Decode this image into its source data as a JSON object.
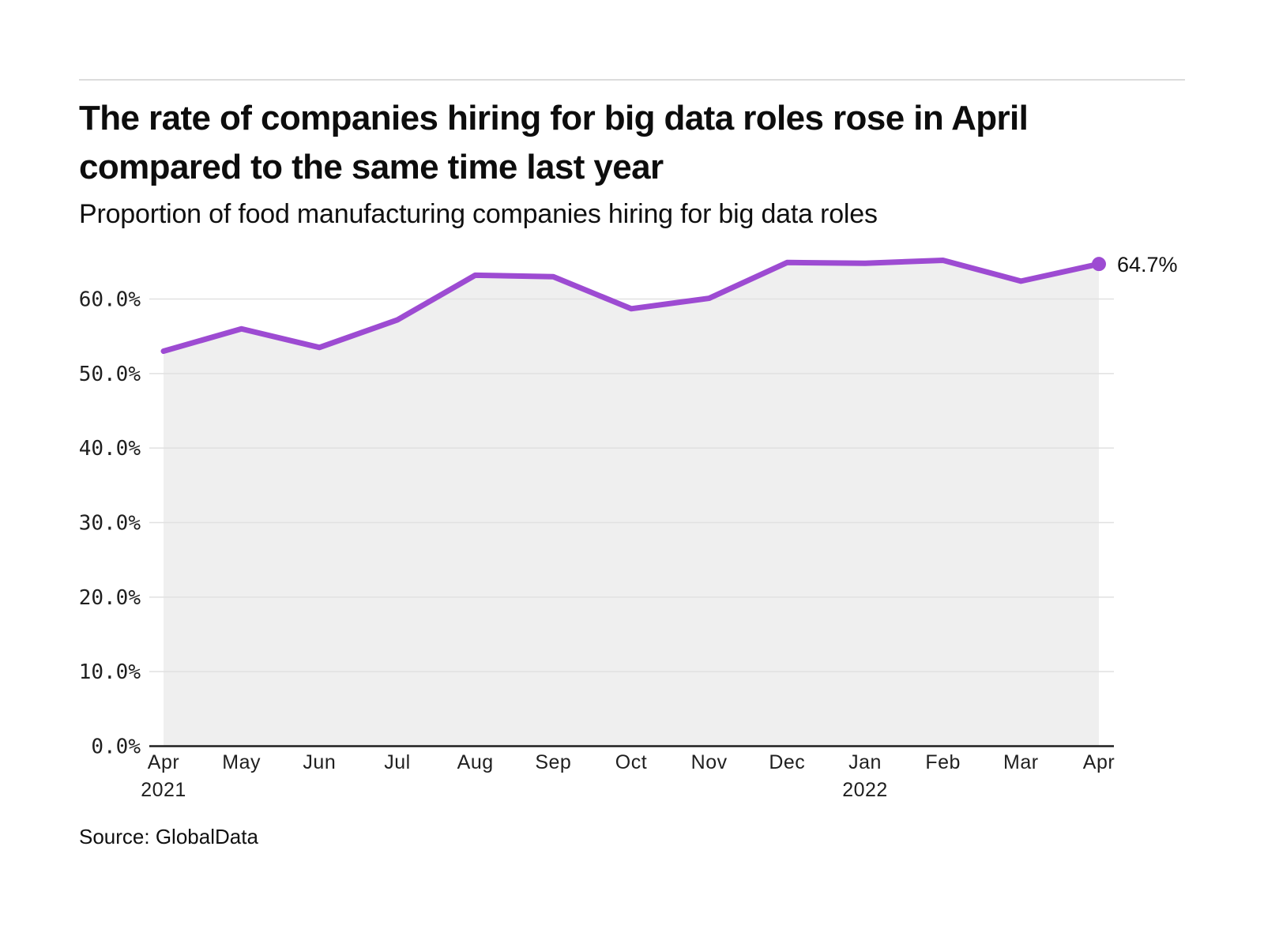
{
  "header": {
    "title": "The rate of companies hiring for big data roles rose in April compared to the same time last year",
    "subtitle": "Proportion of food manufacturing companies hiring for big data roles"
  },
  "footer": {
    "source": "Source: GlobalData"
  },
  "chart_data": {
    "type": "line",
    "area_fill": true,
    "title": "The rate of companies hiring for big data roles rose in April compared to the same time last year",
    "subtitle": "Proportion of food manufacturing companies hiring for big data roles",
    "source": "Source: GlobalData",
    "categories": [
      "Apr",
      "May",
      "Jun",
      "Jul",
      "Aug",
      "Sep",
      "Oct",
      "Nov",
      "Dec",
      "Jan",
      "Feb",
      "Mar",
      "Apr"
    ],
    "year_labels": [
      {
        "index": 0,
        "label": "2021"
      },
      {
        "index": 9,
        "label": "2022"
      }
    ],
    "series": [
      {
        "name": "Proportion of food manufacturing companies hiring for big data roles",
        "values": [
          53.0,
          56.0,
          53.5,
          57.2,
          63.2,
          63.0,
          58.7,
          60.1,
          64.9,
          64.8,
          65.2,
          62.4,
          64.7
        ]
      }
    ],
    "end_label": "64.7%",
    "ylim": [
      0,
      70
    ],
    "yticks": [
      {
        "value": 0,
        "label": "0.0%"
      },
      {
        "value": 10,
        "label": "10.0%"
      },
      {
        "value": 20,
        "label": "20.0%"
      },
      {
        "value": 30,
        "label": "30.0%"
      },
      {
        "value": 40,
        "label": "40.0%"
      },
      {
        "value": 50,
        "label": "50.0%"
      },
      {
        "value": 60,
        "label": "60.0%"
      }
    ],
    "grid": true,
    "legend_position": "none",
    "colors": {
      "line": "#9d4bd2",
      "marker": "#9d4bd2",
      "area": "#efefef",
      "gridline": "#e1e1e1",
      "axis": "#1f1f1f",
      "tick_text": "#1f1f1f",
      "rule": "#dcdcdc"
    }
  }
}
